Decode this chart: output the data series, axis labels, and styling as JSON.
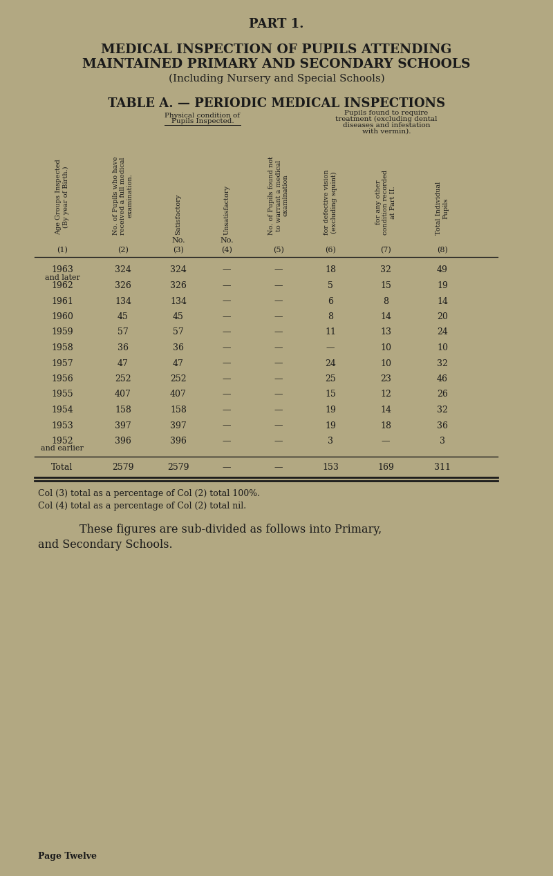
{
  "bg_color": "#b2a882",
  "text_color": "#1a1a1a",
  "part_title": "PART 1.",
  "main_title_line1": "MEDICAL INSPECTION OF PUPILS ATTENDING",
  "main_title_line2": "MAINTAINED PRIMARY AND SECONDARY SCHOOLS",
  "main_title_line3": "(Including Nursery and Special Schools)",
  "table_title": "TABLE A. — PERIODIC MEDICAL INSPECTIONS",
  "col_headers_rotated": [
    "Age Groups Inspected\n(By year of Birth.)",
    "No. of Pupils who have\nreceived a full medical\nexamination.",
    "Satisfactory",
    "Unsatisfactory",
    "No. of Pupils found not\nto warrant a medical\nexamination",
    "for defective vision\n(excluding squint)",
    "for any other\ncondition recorded\nat Part II.",
    "Total Individual\nPupils"
  ],
  "col_numbers": [
    "(1)",
    "(2)",
    "(3)",
    "(4)",
    "(5)",
    "(6)",
    "(7)",
    "(8)"
  ],
  "col_x_positions": [
    90,
    178,
    258,
    328,
    403,
    478,
    558,
    640
  ],
  "rows": [
    {
      "year": "1963",
      "note": "and later",
      "col2": "324",
      "col3": "324",
      "col4": "—",
      "col5": "—",
      "col6": "18",
      "col7": "32",
      "col8": "49"
    },
    {
      "year": "1962",
      "note": "",
      "col2": "326",
      "col3": "326",
      "col4": "—",
      "col5": "—",
      "col6": "5",
      "col7": "15",
      "col8": "19"
    },
    {
      "year": "1961",
      "note": "",
      "col2": "134",
      "col3": "134",
      "col4": "—",
      "col5": "—",
      "col6": "6",
      "col7": "8",
      "col8": "14"
    },
    {
      "year": "1960",
      "note": "",
      "col2": "45",
      "col3": "45",
      "col4": "—",
      "col5": "—",
      "col6": "8",
      "col7": "14",
      "col8": "20"
    },
    {
      "year": "1959",
      "note": "",
      "col2": "57",
      "col3": "57",
      "col4": "—",
      "col5": "—",
      "col6": "11",
      "col7": "13",
      "col8": "24"
    },
    {
      "year": "1958",
      "note": "",
      "col2": "36",
      "col3": "36",
      "col4": "—",
      "col5": "—",
      "col6": "—",
      "col7": "10",
      "col8": "10"
    },
    {
      "year": "1957",
      "note": "",
      "col2": "47",
      "col3": "47",
      "col4": "—",
      "col5": "—",
      "col6": "24",
      "col7": "10",
      "col8": "32"
    },
    {
      "year": "1956",
      "note": "",
      "col2": "252",
      "col3": "252",
      "col4": "—",
      "col5": "—",
      "col6": "25",
      "col7": "23",
      "col8": "46"
    },
    {
      "year": "1955",
      "note": "",
      "col2": "407",
      "col3": "407",
      "col4": "—",
      "col5": "—",
      "col6": "15",
      "col7": "12",
      "col8": "26"
    },
    {
      "year": "1954",
      "note": "",
      "col2": "158",
      "col3": "158",
      "col4": "—",
      "col5": "—",
      "col6": "19",
      "col7": "14",
      "col8": "32"
    },
    {
      "year": "1953",
      "note": "",
      "col2": "397",
      "col3": "397",
      "col4": "—",
      "col5": "—",
      "col6": "19",
      "col7": "18",
      "col8": "36"
    },
    {
      "year": "1952",
      "note": "and earlier",
      "col2": "396",
      "col3": "396",
      "col4": "—",
      "col5": "—",
      "col6": "3",
      "col7": "—",
      "col8": "3"
    }
  ],
  "total_row": {
    "label": "Total",
    "col2": "2579",
    "col3": "2579",
    "col4": "—",
    "col5": "—",
    "col6": "153",
    "col7": "169",
    "col8": "311"
  },
  "footer_line1": "Col (3) total as a percentage of Col (2) total 100%.",
  "footer_line2": "Col (4) total as a percentage of Col (2) total nil.",
  "footer_para_line1": "These figures are sub-divided as follows into Primary,",
  "footer_para_line2": "and Secondary Schools.",
  "page_label": "Page Twelve"
}
